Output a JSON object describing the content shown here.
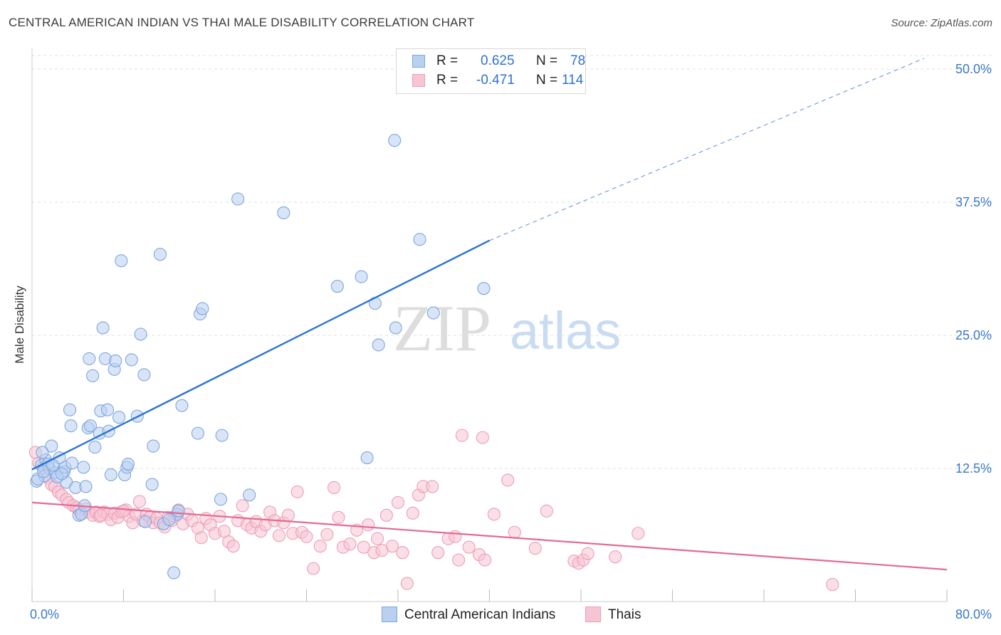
{
  "title": "CENTRAL AMERICAN INDIAN VS THAI MALE DISABILITY CORRELATION CHART",
  "source": "Source: ZipAtlas.com",
  "watermark": {
    "zip": "ZIP",
    "atlas": "atlas"
  },
  "legend": {
    "rows": [
      {
        "r_label": "R =",
        "r_value": "0.625",
        "n_label": "N =",
        "n_value": "78"
      },
      {
        "r_label": "R =",
        "r_value": "-0.471",
        "n_label": "N =",
        "n_value": "114"
      }
    ]
  },
  "colors": {
    "blue": "#7aa7e0",
    "blue_fill": "#b9d0f0",
    "blue_line": "#2d72d2",
    "pink": "#ee9db7",
    "pink_fill": "#f7c4d4",
    "pink_line": "#e46a95",
    "tick_text": "#3a78c9",
    "grid": "#e2e2e2"
  },
  "chart_data": {
    "type": "scatter",
    "title": "CENTRAL AMERICAN INDIAN VS THAI MALE DISABILITY CORRELATION CHART",
    "xlabel": "",
    "ylabel": "Male Disability",
    "xlim": [
      0,
      80
    ],
    "ylim": [
      0,
      50
    ],
    "x_tick_labels": [
      "0.0%",
      "80.0%"
    ],
    "y_ticks": [
      12.5,
      25.0,
      37.5,
      50.0
    ],
    "y_tick_labels": [
      "12.5%",
      "25.0%",
      "37.5%",
      "50.0%"
    ],
    "grid": true,
    "legend_position": "top-center",
    "series": [
      {
        "name": "Central American Indians",
        "r": 0.625,
        "n": 78,
        "trend": {
          "x0": 0,
          "y0": 12.4,
          "x1": 40,
          "y1": 33.9,
          "dashed_to_x": 78,
          "dashed_to_y": 51.0
        },
        "points": [
          [
            0.4,
            11.3
          ],
          [
            0.8,
            12.8
          ],
          [
            1.2,
            13.3
          ],
          [
            1.5,
            12.5
          ],
          [
            1.7,
            14.6
          ],
          [
            2.0,
            12.1
          ],
          [
            1.1,
            11.8
          ],
          [
            1.4,
            12.9
          ],
          [
            2.4,
            13.5
          ],
          [
            2.8,
            12.2
          ],
          [
            3.0,
            11.2
          ],
          [
            2.9,
            12.6
          ],
          [
            3.5,
            13.0
          ],
          [
            3.3,
            18.0
          ],
          [
            3.4,
            16.5
          ],
          [
            3.8,
            10.7
          ],
          [
            4.1,
            8.1
          ],
          [
            4.5,
            12.6
          ],
          [
            4.7,
            10.8
          ],
          [
            4.9,
            16.3
          ],
          [
            5.1,
            16.5
          ],
          [
            5.0,
            22.8
          ],
          [
            5.3,
            21.2
          ],
          [
            5.5,
            14.5
          ],
          [
            5.9,
            15.8
          ],
          [
            6.0,
            17.9
          ],
          [
            6.2,
            25.7
          ],
          [
            6.4,
            22.8
          ],
          [
            6.6,
            18.0
          ],
          [
            6.9,
            11.9
          ],
          [
            7.2,
            21.8
          ],
          [
            7.3,
            22.6
          ],
          [
            7.6,
            17.3
          ],
          [
            7.8,
            32.0
          ],
          [
            8.1,
            11.9
          ],
          [
            8.3,
            12.6
          ],
          [
            8.4,
            12.9
          ],
          [
            8.7,
            22.7
          ],
          [
            9.2,
            17.4
          ],
          [
            9.5,
            25.1
          ],
          [
            9.8,
            21.3
          ],
          [
            9.9,
            7.5
          ],
          [
            10.5,
            11.0
          ],
          [
            10.6,
            14.6
          ],
          [
            11.2,
            32.6
          ],
          [
            11.5,
            7.3
          ],
          [
            12.4,
            2.7
          ],
          [
            12.7,
            8.2
          ],
          [
            12.8,
            8.5
          ],
          [
            13.1,
            18.4
          ],
          [
            14.5,
            15.8
          ],
          [
            14.7,
            27.0
          ],
          [
            14.9,
            27.5
          ],
          [
            16.6,
            15.6
          ],
          [
            16.5,
            9.6
          ],
          [
            18.0,
            37.8
          ],
          [
            19.0,
            10.0
          ],
          [
            22.0,
            36.5
          ],
          [
            26.7,
            29.6
          ],
          [
            28.8,
            30.5
          ],
          [
            29.3,
            13.5
          ],
          [
            30.0,
            28.0
          ],
          [
            30.3,
            24.1
          ],
          [
            31.8,
            25.7
          ],
          [
            31.7,
            43.3
          ],
          [
            33.9,
            34.0
          ],
          [
            35.1,
            27.1
          ],
          [
            39.5,
            29.4
          ],
          [
            0.5,
            11.5
          ],
          [
            1.0,
            12.2
          ],
          [
            2.2,
            11.7
          ],
          [
            2.6,
            12.0
          ],
          [
            4.3,
            8.2
          ],
          [
            6.7,
            16.0
          ],
          [
            4.6,
            9.0
          ],
          [
            12.0,
            7.7
          ],
          [
            0.9,
            14.0
          ],
          [
            1.8,
            12.8
          ]
        ]
      },
      {
        "name": "Thais",
        "r": -0.471,
        "n": 114,
        "trend": {
          "x0": 0,
          "y0": 9.3,
          "x1": 80,
          "y1": 3.0
        },
        "points": [
          [
            0.3,
            14.0
          ],
          [
            0.6,
            13.0
          ],
          [
            1.0,
            12.6
          ],
          [
            1.4,
            11.6
          ],
          [
            1.7,
            11.0
          ],
          [
            2.0,
            10.8
          ],
          [
            2.3,
            10.3
          ],
          [
            2.6,
            10.0
          ],
          [
            3.0,
            9.6
          ],
          [
            3.2,
            9.3
          ],
          [
            3.6,
            9.0
          ],
          [
            3.9,
            8.8
          ],
          [
            4.1,
            8.6
          ],
          [
            4.4,
            8.3
          ],
          [
            4.7,
            8.7
          ],
          [
            5.0,
            8.4
          ],
          [
            5.3,
            8.1
          ],
          [
            5.6,
            8.4
          ],
          [
            5.9,
            8.0
          ],
          [
            6.3,
            8.4
          ],
          [
            6.6,
            8.2
          ],
          [
            6.9,
            7.7
          ],
          [
            7.2,
            8.3
          ],
          [
            7.5,
            7.9
          ],
          [
            7.8,
            8.4
          ],
          [
            8.2,
            8.6
          ],
          [
            8.5,
            8.0
          ],
          [
            8.8,
            7.4
          ],
          [
            9.1,
            8.2
          ],
          [
            9.4,
            9.4
          ],
          [
            9.7,
            7.6
          ],
          [
            10.0,
            8.2
          ],
          [
            10.3,
            7.9
          ],
          [
            10.6,
            7.4
          ],
          [
            10.9,
            7.8
          ],
          [
            11.2,
            7.4
          ],
          [
            11.6,
            7.0
          ],
          [
            11.9,
            7.9
          ],
          [
            12.2,
            7.6
          ],
          [
            12.5,
            8.0
          ],
          [
            12.8,
            8.6
          ],
          [
            13.2,
            7.3
          ],
          [
            13.6,
            8.2
          ],
          [
            14.0,
            7.6
          ],
          [
            14.5,
            6.9
          ],
          [
            14.8,
            6.0
          ],
          [
            15.2,
            7.8
          ],
          [
            15.6,
            7.2
          ],
          [
            16.0,
            6.4
          ],
          [
            16.4,
            8.0
          ],
          [
            16.8,
            6.6
          ],
          [
            17.2,
            5.6
          ],
          [
            17.6,
            5.2
          ],
          [
            18.0,
            7.6
          ],
          [
            18.4,
            9.0
          ],
          [
            18.8,
            7.2
          ],
          [
            19.2,
            6.9
          ],
          [
            19.6,
            7.5
          ],
          [
            20.0,
            6.6
          ],
          [
            20.4,
            7.2
          ],
          [
            20.8,
            8.4
          ],
          [
            21.2,
            7.6
          ],
          [
            21.6,
            6.2
          ],
          [
            22.0,
            7.4
          ],
          [
            22.4,
            8.1
          ],
          [
            22.8,
            6.4
          ],
          [
            23.2,
            10.3
          ],
          [
            23.6,
            6.5
          ],
          [
            24.0,
            6.1
          ],
          [
            24.6,
            3.1
          ],
          [
            25.2,
            5.2
          ],
          [
            25.8,
            6.3
          ],
          [
            26.4,
            10.7
          ],
          [
            26.8,
            7.9
          ],
          [
            27.2,
            5.1
          ],
          [
            27.8,
            5.4
          ],
          [
            28.4,
            6.7
          ],
          [
            29.0,
            5.1
          ],
          [
            29.4,
            7.2
          ],
          [
            29.9,
            4.6
          ],
          [
            30.2,
            5.9
          ],
          [
            30.6,
            4.8
          ],
          [
            31.0,
            8.1
          ],
          [
            31.5,
            5.2
          ],
          [
            32.0,
            9.3
          ],
          [
            32.4,
            4.6
          ],
          [
            32.8,
            1.7
          ],
          [
            33.3,
            8.3
          ],
          [
            33.8,
            10.0
          ],
          [
            34.2,
            10.8
          ],
          [
            35.0,
            10.8
          ],
          [
            35.5,
            4.6
          ],
          [
            36.4,
            5.9
          ],
          [
            37.0,
            6.1
          ],
          [
            37.3,
            3.9
          ],
          [
            37.6,
            15.6
          ],
          [
            38.2,
            5.1
          ],
          [
            39.1,
            4.4
          ],
          [
            39.4,
            15.4
          ],
          [
            39.6,
            3.9
          ],
          [
            40.4,
            8.2
          ],
          [
            41.6,
            11.4
          ],
          [
            42.2,
            6.5
          ],
          [
            44.0,
            5.0
          ],
          [
            45.0,
            8.5
          ],
          [
            47.4,
            3.8
          ],
          [
            47.8,
            3.6
          ],
          [
            48.2,
            3.9
          ],
          [
            48.6,
            4.5
          ],
          [
            51.0,
            4.2
          ],
          [
            53.0,
            6.4
          ],
          [
            70.0,
            1.6
          ],
          [
            6.0,
            8.1
          ],
          [
            8.0,
            8.5
          ]
        ]
      }
    ]
  }
}
